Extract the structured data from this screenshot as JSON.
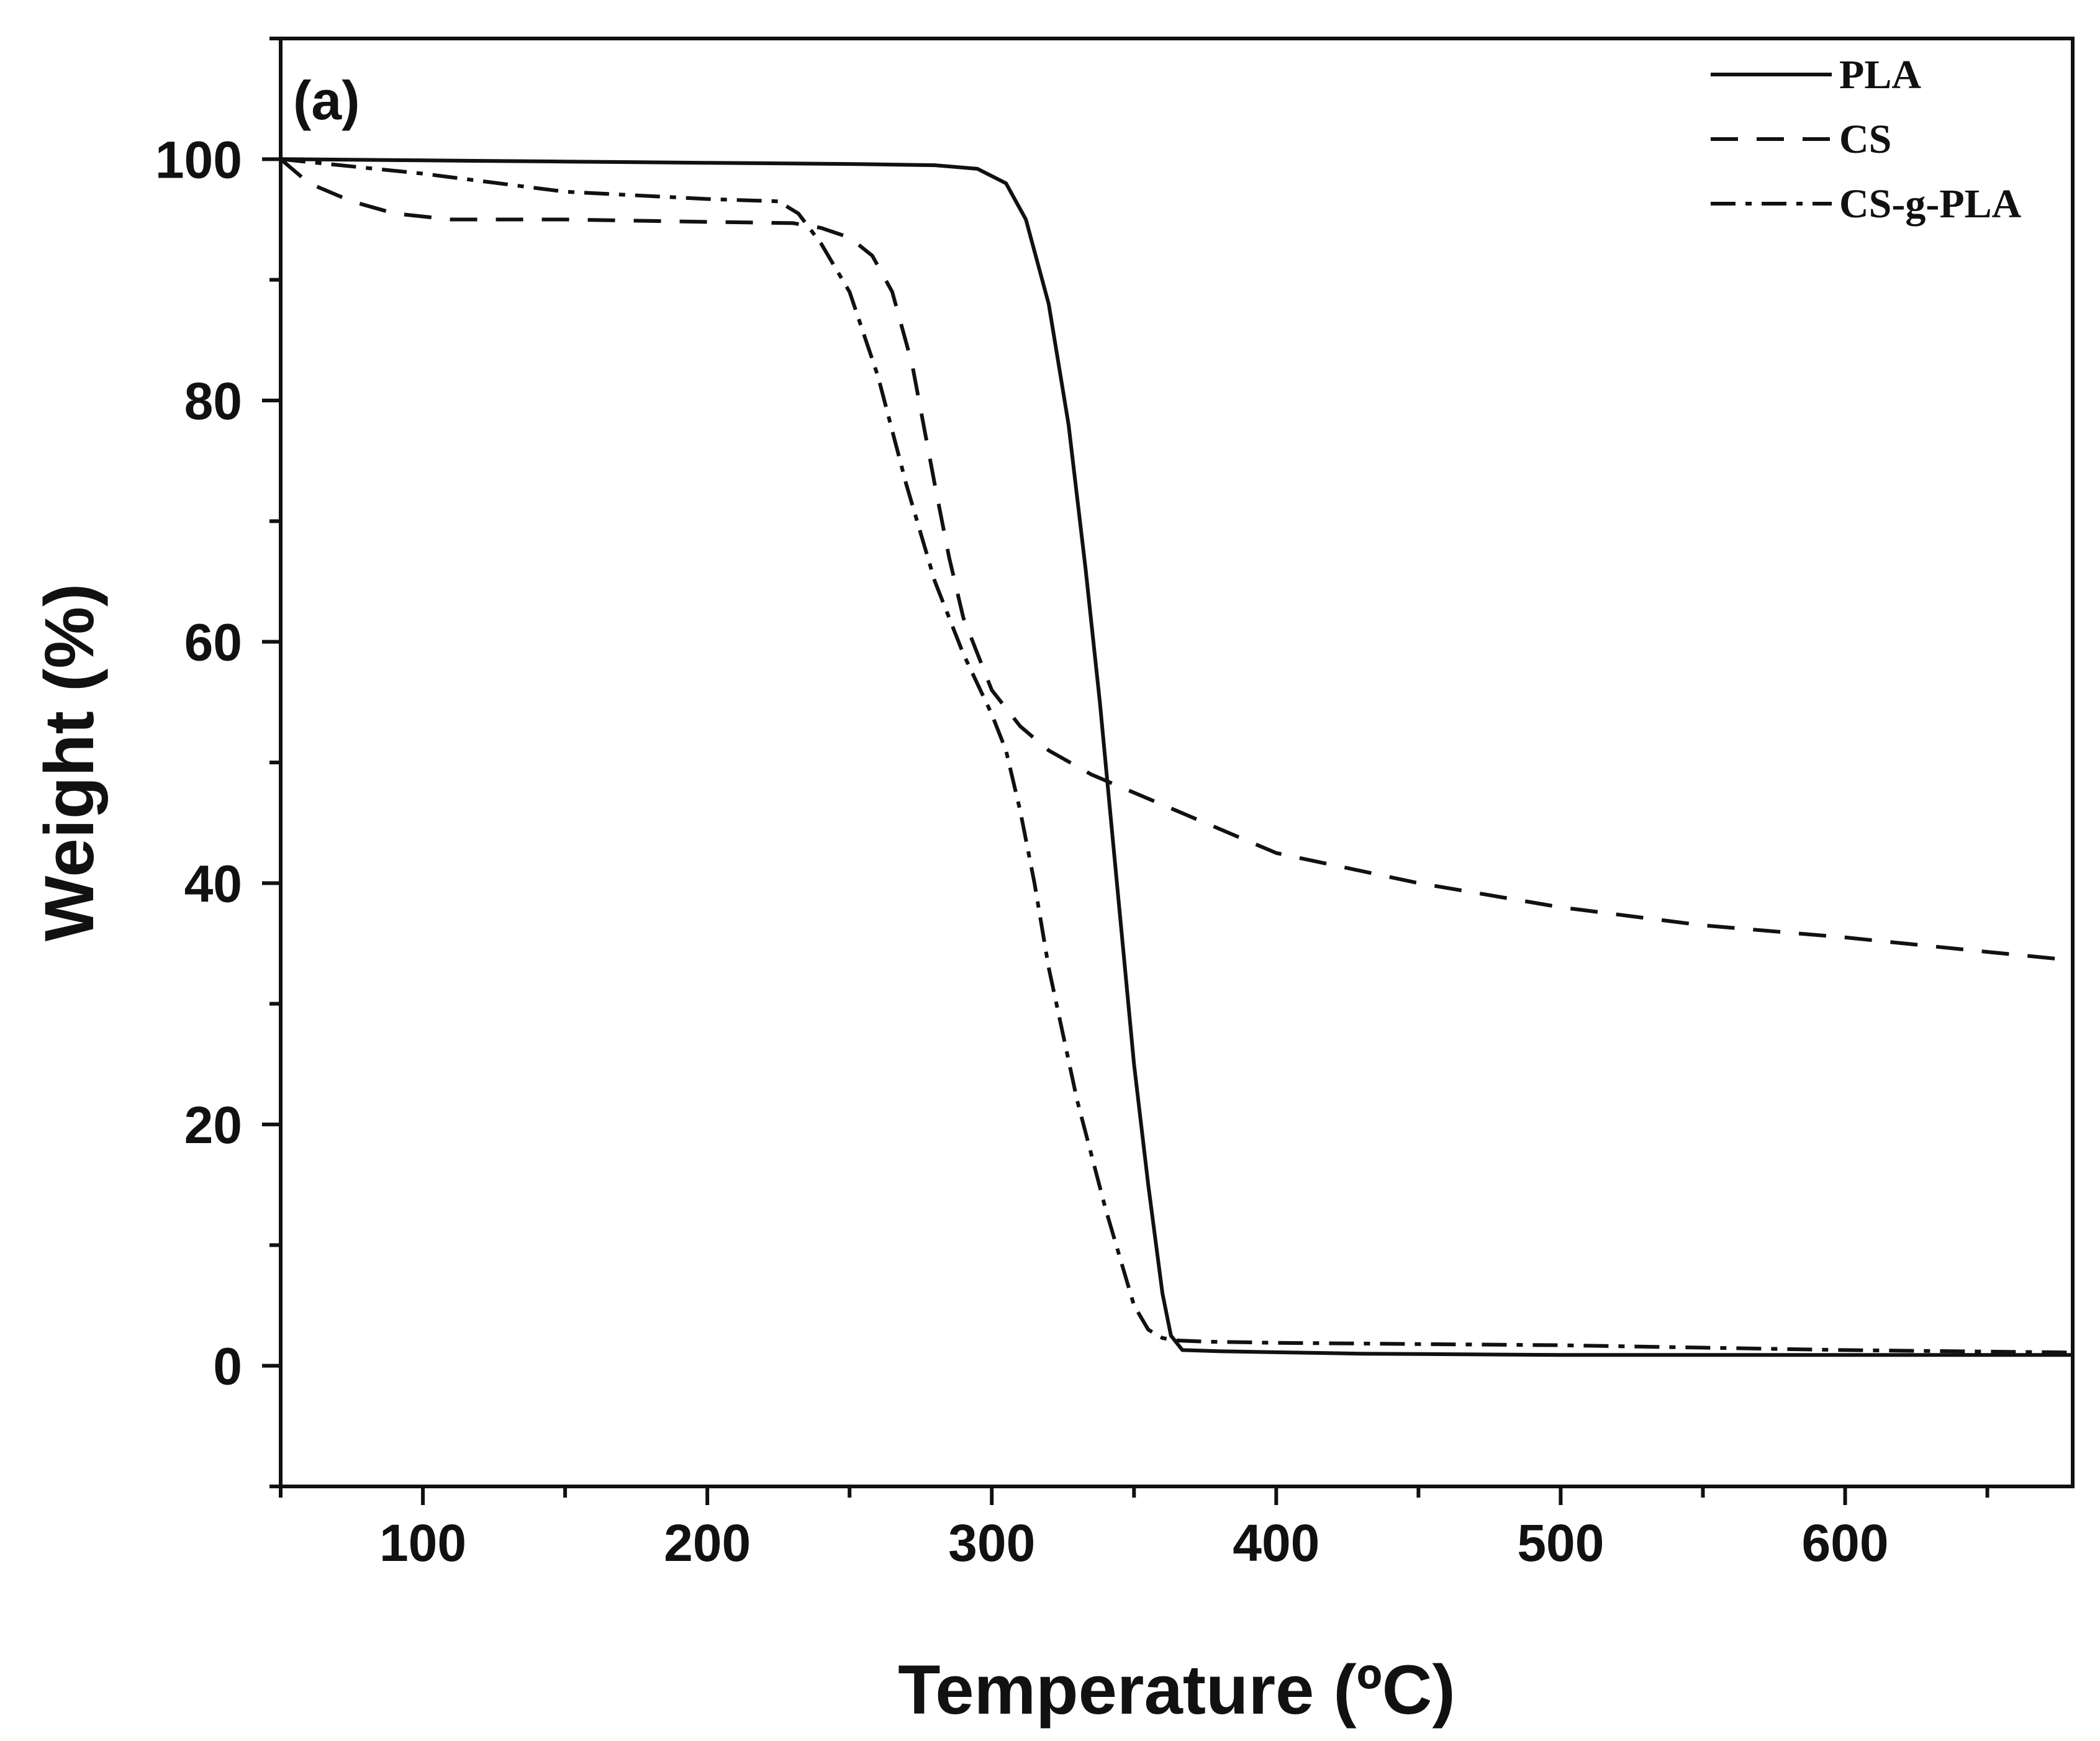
{
  "chart_data": {
    "type": "line",
    "panel_label": "(a)",
    "xlabel": "Temperature (ºC)",
    "ylabel": "Weight (%)",
    "xlim": [
      50,
      680
    ],
    "ylim": [
      -10,
      110
    ],
    "x_ticks": [
      100,
      200,
      300,
      400,
      500,
      600
    ],
    "y_ticks": [
      0,
      20,
      40,
      60,
      80,
      100
    ],
    "x_minor_step": 50,
    "y_minor_step": 10,
    "grid": false,
    "legend_position": "top-right",
    "line_color": "#111111",
    "series": [
      {
        "name": "PLA",
        "dash": "solid",
        "x": [
          50,
          100,
          150,
          200,
          250,
          280,
          295,
          305,
          312,
          320,
          327,
          333,
          338,
          342,
          346,
          350,
          355,
          360,
          363,
          367,
          380,
          430,
          500,
          600,
          680
        ],
        "y": [
          100,
          99.9,
          99.8,
          99.7,
          99.6,
          99.5,
          99.2,
          98,
          95,
          88,
          78,
          66,
          55,
          45,
          35,
          25,
          15,
          6,
          2.5,
          1.3,
          1.2,
          1.0,
          0.9,
          0.9,
          0.9
        ]
      },
      {
        "name": "CS",
        "dash": "dashed",
        "x": [
          50,
          60,
          75,
          90,
          110,
          150,
          200,
          230,
          240,
          250,
          258,
          265,
          272,
          280,
          285,
          290,
          295,
          300,
          310,
          320,
          335,
          350,
          370,
          400,
          450,
          500,
          550,
          600,
          650,
          680
        ],
        "y": [
          100,
          98,
          96.5,
          95.5,
          95,
          95,
          94.8,
          94.7,
          94.3,
          93.5,
          92,
          89,
          83,
          73,
          67,
          62,
          59,
          56,
          53,
          51,
          49,
          47.5,
          45.5,
          42.5,
          40,
          38,
          36.5,
          35.5,
          34.3,
          33.6
        ]
      },
      {
        "name": "CS-g-PLA",
        "dash": "dashdot",
        "x": [
          50,
          100,
          150,
          200,
          225,
          232,
          240,
          250,
          260,
          270,
          280,
          290,
          300,
          305,
          310,
          315,
          320,
          330,
          340,
          350,
          355,
          360,
          365,
          375,
          400,
          450,
          500,
          550,
          600,
          680
        ],
        "y": [
          100,
          98.8,
          97.3,
          96.7,
          96.5,
          95.5,
          93,
          89,
          82,
          73,
          65,
          59,
          54,
          51,
          46,
          40,
          33,
          22,
          13,
          5,
          3,
          2.3,
          2.1,
          2,
          1.9,
          1.8,
          1.7,
          1.5,
          1.3,
          1.1
        ]
      }
    ]
  }
}
